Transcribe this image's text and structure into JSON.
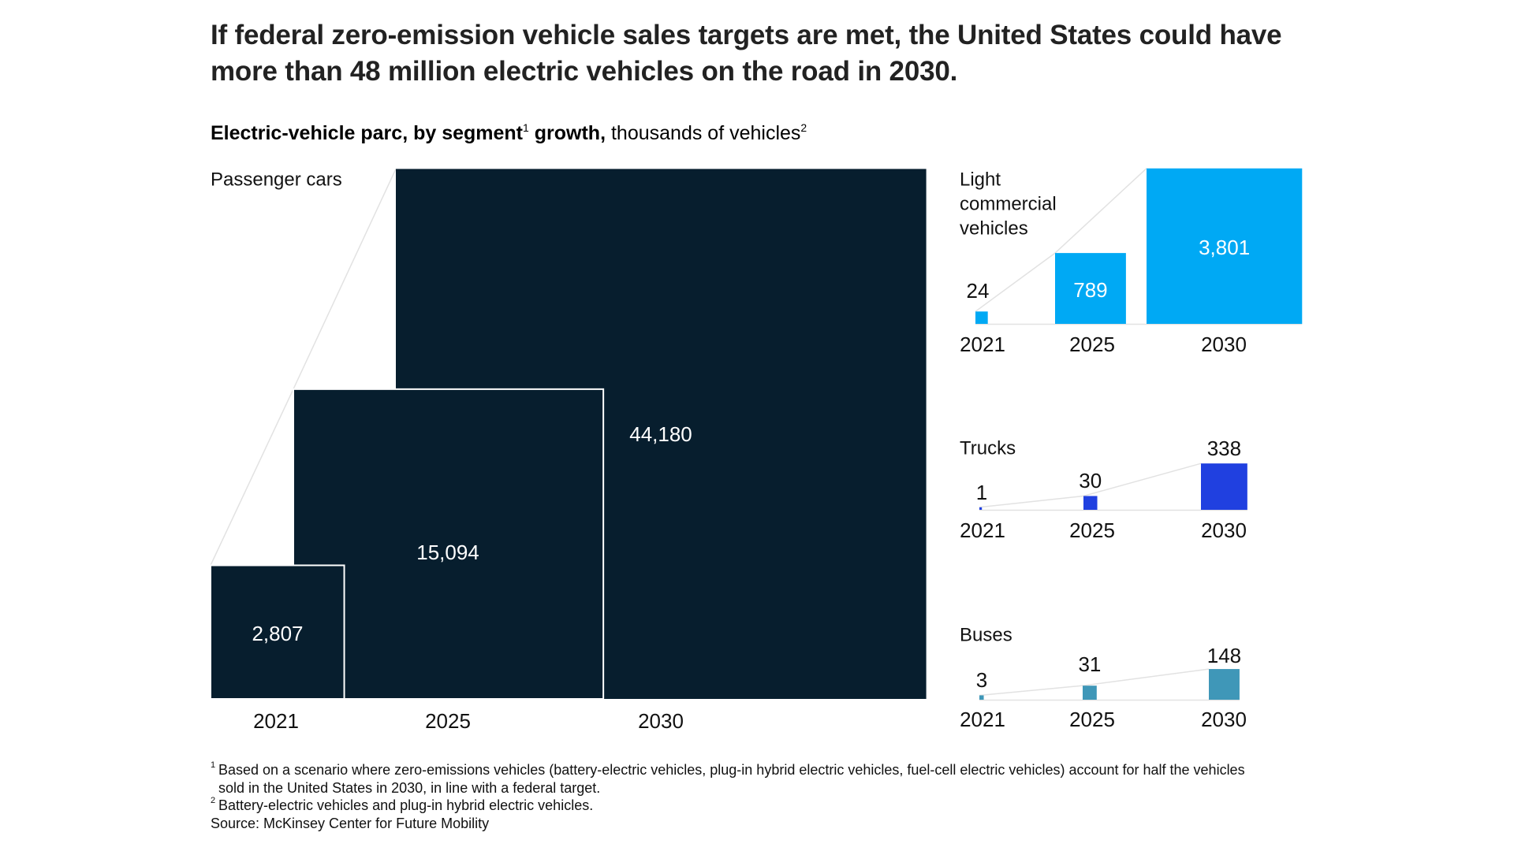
{
  "title": "If federal zero-emission vehicle sales targets are met, the United States could have more than 48 million electric vehicles on the road in 2030.",
  "subtitle": {
    "bold_part_1": "Electric-vehicle parc, by segment",
    "sup_1": "1",
    "bold_part_2": " growth,",
    "regular_part": " thousands of vehicles",
    "sup_2": "2"
  },
  "colors": {
    "passenger_cars": "#071e2e",
    "light_commercial_vehicles": "#00a9f4",
    "trucks": "#2040e0",
    "buses": "#3f97b8",
    "connector_line": "#e2e2e2",
    "baseline": "#e2e2e2",
    "text": "#111111",
    "label_on_dark": "#ffffff"
  },
  "chart_data": {
    "type": "area-proportional squares",
    "title": "Electric-vehicle parc, by segment growth",
    "unit": "thousands of vehicles",
    "categories": [
      "2021",
      "2025",
      "2030"
    ],
    "series": [
      {
        "name": "Passenger cars",
        "values": [
          2807,
          15094,
          44180
        ],
        "labels": [
          "2,807",
          "15,094",
          "44,180"
        ]
      },
      {
        "name": "Light commercial vehicles",
        "values": [
          24,
          789,
          3801
        ],
        "labels": [
          "24",
          "789",
          "3,801"
        ]
      },
      {
        "name": "Trucks",
        "values": [
          1,
          30,
          338
        ],
        "labels": [
          "1",
          "30",
          "338"
        ]
      },
      {
        "name": "Buses",
        "values": [
          3,
          31,
          148
        ],
        "labels": [
          "3",
          "31",
          "148"
        ]
      }
    ]
  },
  "segment_labels": {
    "passenger_cars": "Passenger cars",
    "light_commercial_vehicles": [
      "Light",
      "commercial",
      "vehicles"
    ],
    "trucks": "Trucks",
    "buses": "Buses"
  },
  "footnotes": [
    {
      "marker": "1",
      "text": "Based on a scenario where zero-emissions vehicles (battery-electric vehicles, plug-in hybrid electric vehicles, fuel-cell electric vehicles) account for half the vehicles sold in the United States in 2030, in line with a federal target."
    },
    {
      "marker": "2",
      "text": "Battery-electric vehicles and plug-in hybrid electric vehicles."
    }
  ],
  "source": "Source: McKinsey Center for Future Mobility"
}
